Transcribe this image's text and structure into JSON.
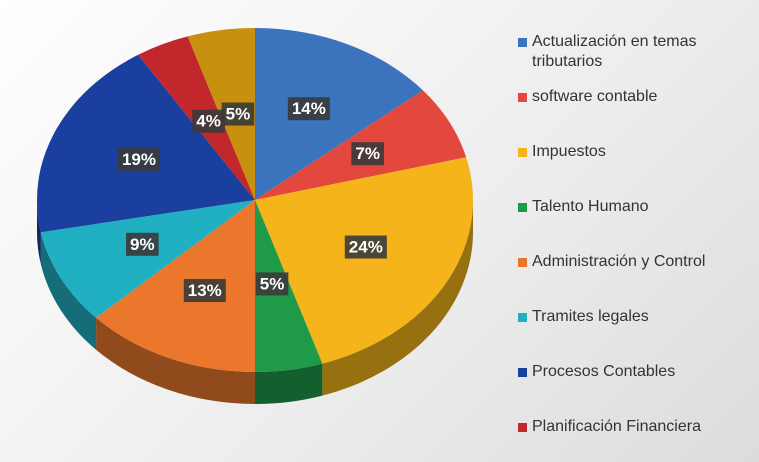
{
  "chart_data": {
    "type": "pie3d",
    "categories": [
      "Actualización en temas tributarios",
      "software contable",
      "Impuestos",
      "Talento Humano",
      "Administración y Control",
      "Tramites legales",
      "Procesos Contables",
      "Planificación Financiera",
      null
    ],
    "values": [
      14,
      7,
      24,
      5,
      13,
      9,
      19,
      4,
      5
    ],
    "value_labels": [
      "14%",
      "7%",
      "24%",
      "5%",
      "13%",
      "9%",
      "19%",
      "4%",
      "5%"
    ],
    "colors": [
      "#3b74bd",
      "#e2483d",
      "#f4b41a",
      "#1e9a48",
      "#ea772c",
      "#20b0c2",
      "#1b3f9f",
      "#c1272b",
      "#c8900f"
    ]
  }
}
